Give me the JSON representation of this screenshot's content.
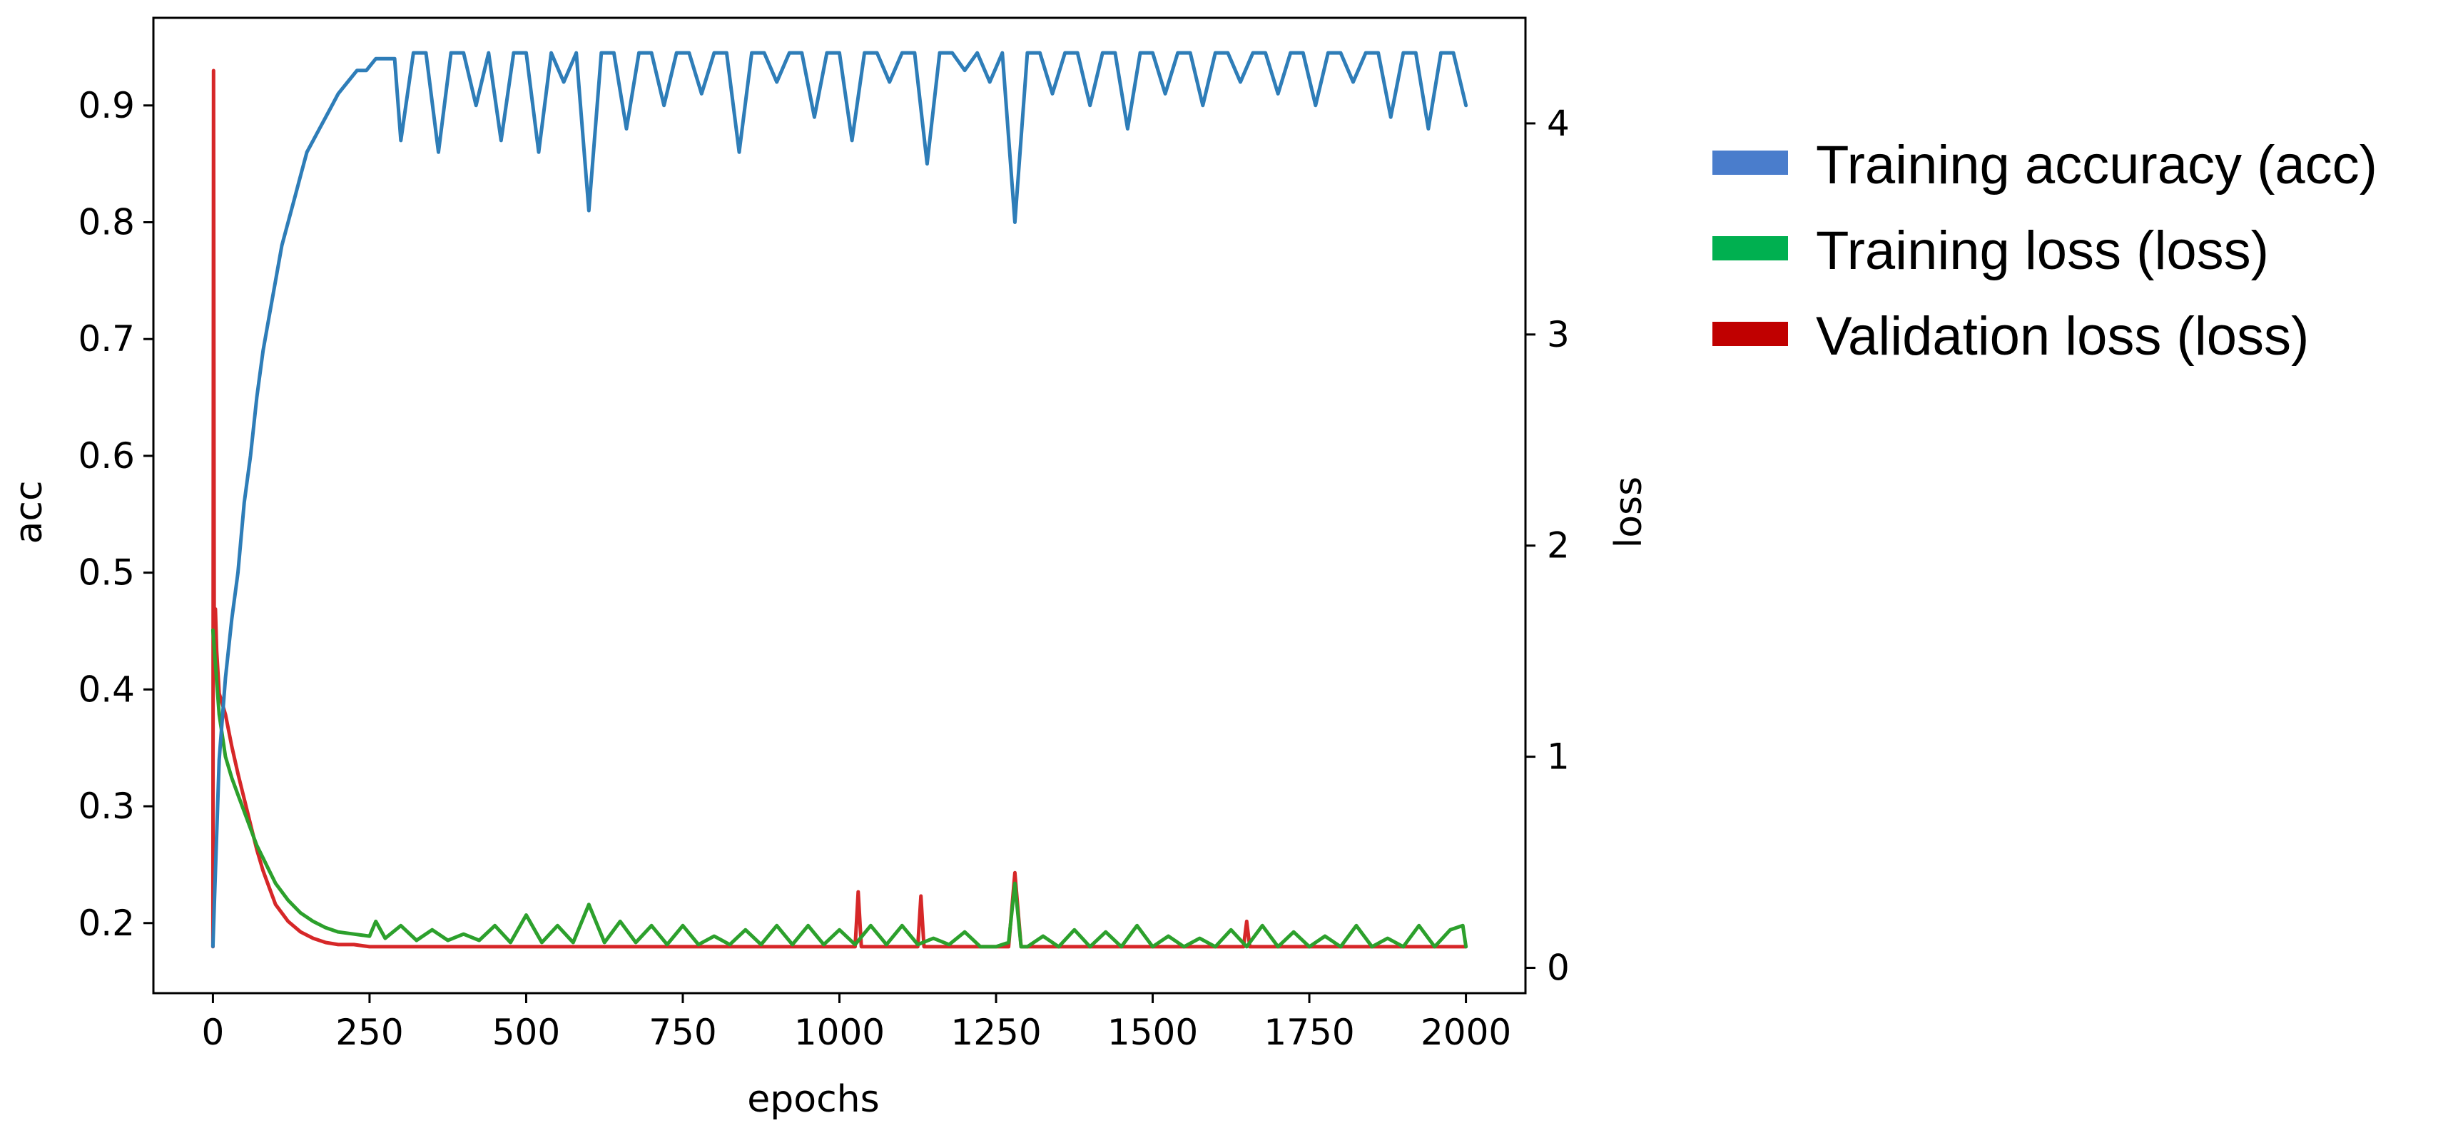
{
  "chart_data": {
    "type": "line",
    "xlabel": "epochs",
    "ylabel_left": "acc",
    "ylabel_right": "loss",
    "xlim": [
      -95,
      2095
    ],
    "ylim_left": [
      0.14,
      0.975
    ],
    "ylim_right": [
      -0.12,
      4.5
    ],
    "xticks": [
      0,
      250,
      500,
      750,
      1000,
      1250,
      1500,
      1750,
      2000
    ],
    "yticks_left": [
      0.2,
      0.3,
      0.4,
      0.5,
      0.6,
      0.7,
      0.8,
      0.9
    ],
    "yticks_right": [
      0,
      1,
      2,
      3,
      4
    ],
    "grid": false,
    "legend_position": "outside-right",
    "series": [
      {
        "name": "Training accuracy (acc)",
        "axis": "left",
        "color": "#2E7DB8",
        "legend_color": "#4A7DCC",
        "x": [
          0,
          10,
          20,
          30,
          40,
          50,
          60,
          70,
          80,
          90,
          100,
          110,
          120,
          130,
          140,
          150,
          160,
          170,
          180,
          190,
          200,
          215,
          230,
          245,
          260,
          275,
          290,
          300,
          320,
          340,
          360,
          380,
          400,
          420,
          440,
          460,
          480,
          500,
          520,
          540,
          560,
          580,
          600,
          620,
          640,
          660,
          680,
          700,
          720,
          740,
          760,
          780,
          800,
          820,
          840,
          860,
          880,
          900,
          920,
          940,
          960,
          980,
          1000,
          1020,
          1040,
          1060,
          1080,
          1100,
          1120,
          1140,
          1160,
          1180,
          1200,
          1220,
          1240,
          1260,
          1280,
          1300,
          1320,
          1340,
          1360,
          1380,
          1400,
          1420,
          1440,
          1460,
          1480,
          1500,
          1520,
          1540,
          1560,
          1580,
          1600,
          1620,
          1640,
          1660,
          1680,
          1700,
          1720,
          1740,
          1760,
          1780,
          1800,
          1820,
          1840,
          1860,
          1880,
          1900,
          1920,
          1940,
          1960,
          1980,
          2000
        ],
        "values": [
          0.18,
          0.34,
          0.41,
          0.46,
          0.5,
          0.56,
          0.6,
          0.65,
          0.69,
          0.72,
          0.75,
          0.78,
          0.8,
          0.82,
          0.84,
          0.86,
          0.87,
          0.88,
          0.89,
          0.9,
          0.91,
          0.92,
          0.93,
          0.93,
          0.94,
          0.94,
          0.94,
          0.87,
          0.945,
          0.945,
          0.86,
          0.945,
          0.945,
          0.9,
          0.945,
          0.87,
          0.945,
          0.945,
          0.86,
          0.945,
          0.92,
          0.945,
          0.81,
          0.945,
          0.945,
          0.88,
          0.945,
          0.945,
          0.9,
          0.945,
          0.945,
          0.91,
          0.945,
          0.945,
          0.86,
          0.945,
          0.945,
          0.92,
          0.945,
          0.945,
          0.89,
          0.945,
          0.945,
          0.87,
          0.945,
          0.945,
          0.92,
          0.945,
          0.945,
          0.85,
          0.945,
          0.945,
          0.93,
          0.945,
          0.92,
          0.945,
          0.8,
          0.945,
          0.945,
          0.91,
          0.945,
          0.945,
          0.9,
          0.945,
          0.945,
          0.88,
          0.945,
          0.945,
          0.91,
          0.945,
          0.945,
          0.9,
          0.945,
          0.945,
          0.92,
          0.945,
          0.945,
          0.91,
          0.945,
          0.945,
          0.9,
          0.945,
          0.945,
          0.92,
          0.945,
          0.945,
          0.89,
          0.945,
          0.945,
          0.88,
          0.945,
          0.945,
          0.9
        ]
      },
      {
        "name": "Training loss (loss)",
        "axis": "right",
        "color": "#2CA02C",
        "legend_color": "#00B050",
        "x": [
          0,
          10,
          20,
          30,
          40,
          50,
          60,
          70,
          80,
          90,
          100,
          120,
          140,
          160,
          180,
          200,
          225,
          250,
          260,
          275,
          300,
          325,
          350,
          375,
          400,
          425,
          450,
          475,
          500,
          525,
          550,
          575,
          600,
          625,
          650,
          675,
          700,
          725,
          750,
          775,
          800,
          825,
          850,
          875,
          900,
          925,
          950,
          975,
          1000,
          1025,
          1050,
          1075,
          1100,
          1125,
          1150,
          1175,
          1200,
          1225,
          1250,
          1270,
          1280,
          1290,
          1300,
          1325,
          1350,
          1375,
          1400,
          1425,
          1450,
          1475,
          1500,
          1525,
          1550,
          1575,
          1600,
          1625,
          1650,
          1675,
          1700,
          1725,
          1750,
          1775,
          1800,
          1825,
          1850,
          1875,
          1900,
          1925,
          1950,
          1975,
          1995,
          2000
        ],
        "values": [
          1.6,
          1.2,
          1.0,
          0.9,
          0.82,
          0.74,
          0.66,
          0.58,
          0.52,
          0.46,
          0.4,
          0.32,
          0.26,
          0.22,
          0.19,
          0.17,
          0.16,
          0.15,
          0.22,
          0.14,
          0.2,
          0.13,
          0.18,
          0.13,
          0.16,
          0.13,
          0.2,
          0.12,
          0.25,
          0.12,
          0.2,
          0.12,
          0.3,
          0.12,
          0.22,
          0.12,
          0.2,
          0.11,
          0.2,
          0.11,
          0.15,
          0.11,
          0.18,
          0.11,
          0.2,
          0.11,
          0.2,
          0.11,
          0.18,
          0.11,
          0.2,
          0.11,
          0.2,
          0.11,
          0.14,
          0.11,
          0.17,
          0.1,
          0.1,
          0.12,
          0.4,
          0.1,
          0.1,
          0.15,
          0.1,
          0.18,
          0.1,
          0.17,
          0.1,
          0.2,
          0.1,
          0.15,
          0.1,
          0.14,
          0.1,
          0.18,
          0.1,
          0.2,
          0.1,
          0.17,
          0.1,
          0.15,
          0.1,
          0.2,
          0.1,
          0.14,
          0.1,
          0.2,
          0.1,
          0.18,
          0.2,
          0.1
        ]
      },
      {
        "name": "Validation loss (loss)",
        "axis": "right",
        "color": "#D62728",
        "legend_color": "#C00000",
        "x": [
          0,
          1,
          2,
          4,
          6,
          10,
          20,
          30,
          40,
          50,
          60,
          70,
          80,
          90,
          100,
          120,
          140,
          160,
          180,
          200,
          225,
          250,
          300,
          400,
          500,
          600,
          700,
          800,
          900,
          1000,
          1025,
          1030,
          1035,
          1050,
          1125,
          1130,
          1135,
          1150,
          1270,
          1280,
          1290,
          1300,
          1500,
          1645,
          1650,
          1655,
          1700,
          1800,
          1900,
          2000
        ],
        "values": [
          0.1,
          4.25,
          1.7,
          1.7,
          1.5,
          1.3,
          1.2,
          1.05,
          0.92,
          0.8,
          0.68,
          0.56,
          0.46,
          0.38,
          0.3,
          0.22,
          0.17,
          0.14,
          0.12,
          0.11,
          0.11,
          0.1,
          0.1,
          0.1,
          0.1,
          0.1,
          0.1,
          0.1,
          0.1,
          0.1,
          0.1,
          0.36,
          0.1,
          0.1,
          0.1,
          0.34,
          0.1,
          0.1,
          0.1,
          0.45,
          0.1,
          0.1,
          0.1,
          0.1,
          0.22,
          0.1,
          0.1,
          0.1,
          0.1,
          0.1
        ]
      }
    ]
  }
}
